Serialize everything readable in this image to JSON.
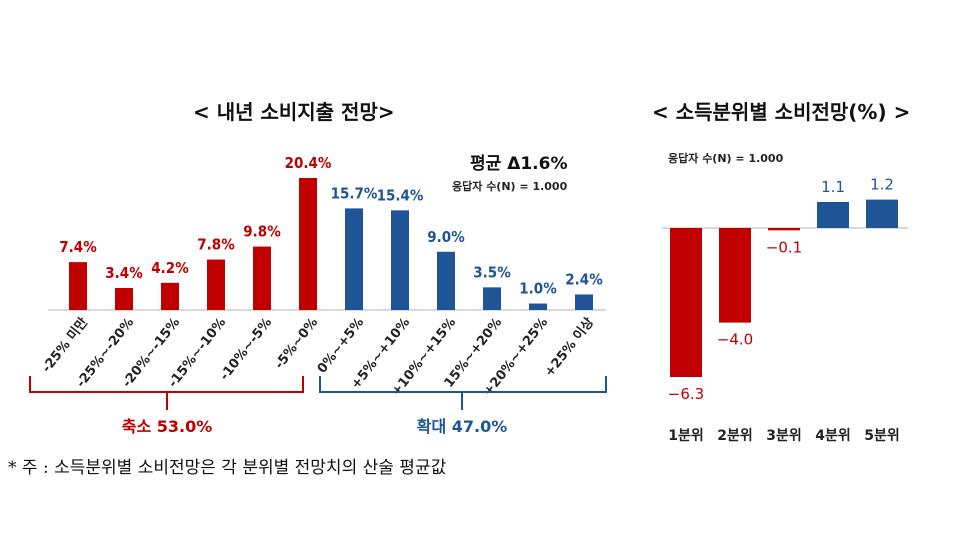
{
  "chart_data": [
    {
      "type": "bar",
      "title": "< 내년 소비지출 전망>",
      "annotation_mean": "평균 Δ1.6%",
      "annotation_n": "응답자 수(N) = 1.000",
      "categories": [
        "-25% 미만",
        "-25%~-20%",
        "-20%~-15%",
        "-15%~-10%",
        "-10%~-5%",
        "-5%~0%",
        "0%~+5%",
        "+5%~+10%",
        "+10%~+15%",
        "15%~+20%",
        "+20%~+25%",
        "+25% 이상"
      ],
      "values": [
        7.4,
        3.4,
        4.2,
        7.8,
        9.8,
        20.4,
        15.7,
        15.4,
        9.0,
        3.5,
        1.0,
        2.4
      ],
      "data_labels": [
        "7.4%",
        "3.4%",
        "4.2%",
        "7.8%",
        "9.8%",
        "20.4%",
        "15.7%",
        "15.4%",
        "9.0%",
        "3.5%",
        "1.0%",
        "2.4%"
      ],
      "colors": [
        "#c00000",
        "#c00000",
        "#c00000",
        "#c00000",
        "#c00000",
        "#c00000",
        "#1f5597",
        "#1f5597",
        "#1f5597",
        "#1f5597",
        "#1f5597",
        "#1f5597"
      ],
      "groups": [
        {
          "label": "축소 53.0%",
          "color": "#c00000"
        },
        {
          "label": "확대 47.0%",
          "color": "#1f5597"
        }
      ],
      "ylim": [
        0,
        22
      ],
      "grid": false
    },
    {
      "type": "bar",
      "title": "< 소득분위별 소비전망(%) >",
      "annotation_n": "응답자 수(N) = 1.000",
      "categories": [
        "1분위",
        "2분위",
        "3분위",
        "4분위",
        "5분위"
      ],
      "values": [
        -6.3,
        -4.0,
        -0.1,
        1.1,
        1.2
      ],
      "data_labels": [
        "-6.3",
        "-4.0",
        "-0.1",
        "1.1",
        "1.2"
      ],
      "colors": {
        "negative": "#c00000",
        "positive": "#1f5597"
      },
      "ylim": [
        -7,
        2
      ],
      "grid": false
    }
  ],
  "footnote": "* 주 : 소득분위별 소비전망은 각 분위별 전망치의 산술 평균값"
}
